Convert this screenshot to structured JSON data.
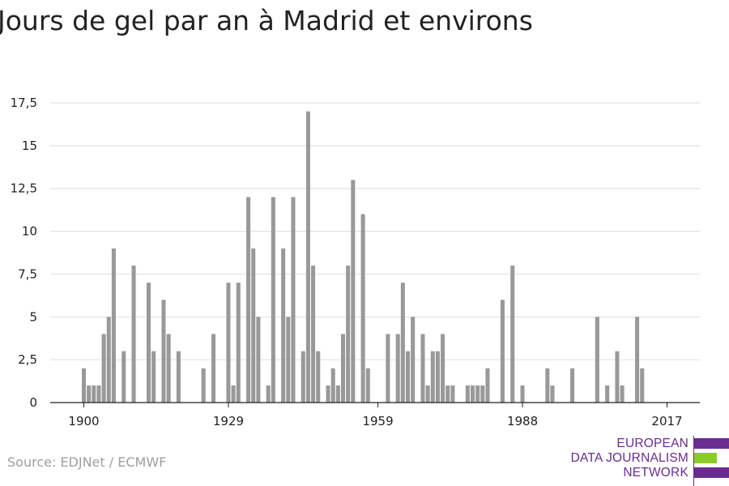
{
  "title": "Jours de gel par an à Madrid et environs",
  "source": "Source: EDJNet / ECMWF",
  "logo": {
    "line1": "EUROPEAN",
    "line2": "DATA JOURNALISM",
    "line3": "NETWORK",
    "colors": [
      "#6a2c91",
      "#8ccc2a",
      "#6a2c91"
    ]
  },
  "chart_data": {
    "type": "bar",
    "title": "Jours de gel par an à Madrid et environs",
    "xlabel": "",
    "ylabel": "",
    "xlim": [
      1900,
      2017
    ],
    "ylim": [
      0,
      17.5
    ],
    "x_ticks": [
      1900,
      1929,
      1959,
      1988,
      2017
    ],
    "y_ticks": [
      0,
      2.5,
      5,
      7.5,
      10,
      12.5,
      15,
      17.5
    ],
    "y_tick_labels": [
      "0",
      "2,5",
      "5",
      "7,5",
      "10",
      "12,5",
      "15",
      "17,5"
    ],
    "x_tick_labels": [
      "1900",
      "1929",
      "1959",
      "1988",
      "2017"
    ],
    "bar_color": "#999999",
    "grid": true,
    "legend": "none",
    "x": [
      1900,
      1901,
      1902,
      1903,
      1904,
      1905,
      1906,
      1907,
      1908,
      1909,
      1910,
      1911,
      1912,
      1913,
      1914,
      1915,
      1916,
      1917,
      1918,
      1919,
      1920,
      1921,
      1922,
      1923,
      1924,
      1925,
      1926,
      1927,
      1928,
      1929,
      1930,
      1931,
      1932,
      1933,
      1934,
      1935,
      1936,
      1937,
      1938,
      1939,
      1940,
      1941,
      1942,
      1943,
      1944,
      1945,
      1946,
      1947,
      1948,
      1949,
      1950,
      1951,
      1952,
      1953,
      1954,
      1955,
      1956,
      1957,
      1958,
      1959,
      1960,
      1961,
      1962,
      1963,
      1964,
      1965,
      1966,
      1967,
      1968,
      1969,
      1970,
      1971,
      1972,
      1973,
      1974,
      1975,
      1976,
      1977,
      1978,
      1979,
      1980,
      1981,
      1982,
      1983,
      1984,
      1985,
      1986,
      1987,
      1988,
      1989,
      1990,
      1991,
      1992,
      1993,
      1994,
      1995,
      1996,
      1997,
      1998,
      1999,
      2000,
      2001,
      2002,
      2003,
      2004,
      2005,
      2006,
      2007,
      2008,
      2009,
      2010,
      2011,
      2012,
      2013,
      2014,
      2015,
      2016,
      2017
    ],
    "values": [
      2,
      1,
      1,
      1,
      4,
      5,
      9,
      0,
      3,
      0,
      8,
      0,
      0,
      7,
      3,
      0,
      6,
      4,
      0,
      3,
      0,
      0,
      0,
      0,
      2,
      0,
      4,
      0,
      0,
      7,
      1,
      7,
      0,
      12,
      9,
      5,
      0,
      1,
      12,
      0,
      9,
      5,
      12,
      0,
      3,
      17,
      8,
      3,
      0,
      1,
      2,
      1,
      4,
      8,
      13,
      0,
      11,
      2,
      0,
      0,
      0,
      4,
      0,
      4,
      7,
      3,
      5,
      0,
      4,
      1,
      3,
      3,
      4,
      1,
      1,
      0,
      0,
      1,
      1,
      1,
      1,
      2,
      0,
      0,
      6,
      0,
      8,
      0,
      1,
      0,
      0,
      0,
      0,
      2,
      1,
      0,
      0,
      0,
      2,
      0,
      0,
      0,
      0,
      5,
      0,
      1,
      0,
      3,
      1,
      0,
      0,
      5,
      2,
      0,
      0,
      0,
      0,
      0
    ]
  }
}
